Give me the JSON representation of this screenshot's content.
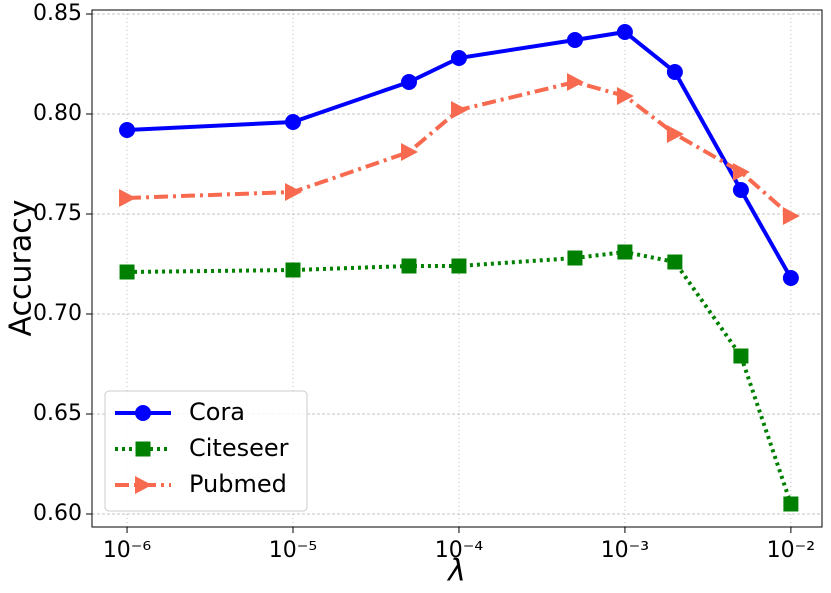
{
  "chart_data": {
    "type": "line",
    "xlabel": "λ",
    "ylabel": "Accuracy",
    "xscale": "log",
    "grid": true,
    "legend": "lower left",
    "x": [
      1e-06,
      1e-05,
      5e-05,
      0.0001,
      0.0005,
      0.001,
      0.002,
      0.005,
      0.01
    ],
    "series": [
      {
        "name": "Cora",
        "color": "#0000ff",
        "linestyle": "solid",
        "marker": "circle",
        "values": [
          0.792,
          0.796,
          0.816,
          0.828,
          0.837,
          0.841,
          0.821,
          0.762,
          0.718
        ]
      },
      {
        "name": "Citeseer",
        "color": "#008000",
        "linestyle": "dotted",
        "marker": "square",
        "values": [
          0.721,
          0.722,
          0.724,
          0.724,
          0.728,
          0.731,
          0.726,
          0.679,
          0.605
        ]
      },
      {
        "name": "Pubmed",
        "color": "#f86a4f",
        "linestyle": "dashdot",
        "marker": "triangle-right",
        "values": [
          0.758,
          0.761,
          0.781,
          0.802,
          0.816,
          0.809,
          0.79,
          0.771,
          0.749
        ]
      }
    ],
    "xlim": [
      6.15e-07,
      0.0154
    ],
    "ylim": [
      0.5935,
      0.852
    ],
    "xticks": [
      {
        "value": 1e-06,
        "label": "10⁻⁶"
      },
      {
        "value": 1e-05,
        "label": "10⁻⁵"
      },
      {
        "value": 0.0001,
        "label": "10⁻⁴"
      },
      {
        "value": 0.001,
        "label": "10⁻³"
      },
      {
        "value": 0.01,
        "label": "10⁻²"
      }
    ],
    "yticks": [
      {
        "value": 0.6,
        "label": "0.60"
      },
      0.65,
      {
        "value": 0.7,
        "label": "0.70"
      },
      0.75,
      {
        "value": 0.8,
        "label": "0.80"
      },
      0.85
    ]
  }
}
